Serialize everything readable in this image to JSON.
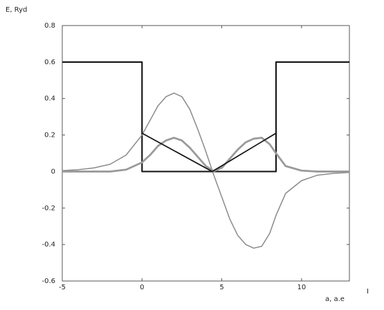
{
  "chart_data": {
    "type": "line",
    "ylabel": "E, Ryd",
    "xlabel": "a, a.e",
    "annotation": "I",
    "xlim": [
      -5,
      13
    ],
    "ylim": [
      -0.6,
      0.8
    ],
    "xticks": [
      -5,
      0,
      5,
      10
    ],
    "yticks": [
      -0.6,
      -0.4,
      -0.2,
      0,
      0.2,
      0.4,
      0.6,
      0.8
    ],
    "series": [
      {
        "color": "#1a1a1a",
        "width": 2.2,
        "x": [
          -5,
          0,
          0,
          8.4,
          8.4,
          13
        ],
        "values": [
          0.6,
          0.6,
          0,
          0,
          0.6,
          0.6
        ]
      },
      {
        "color": "#8a8a8a",
        "width": 1.5,
        "x": [
          -5,
          -4,
          -3,
          -2,
          -1,
          0,
          0.5,
          1,
          1.5,
          2,
          2.5,
          3,
          3.5,
          4,
          4.5,
          5,
          5.5,
          6,
          6.5,
          7,
          7.5,
          8,
          8.4,
          9,
          10,
          11,
          12,
          13
        ],
        "values": [
          0.005,
          0.01,
          0.02,
          0.04,
          0.09,
          0.2,
          0.28,
          0.36,
          0.41,
          0.43,
          0.41,
          0.34,
          0.23,
          0.11,
          -0.02,
          -0.14,
          -0.26,
          -0.35,
          -0.4,
          -0.42,
          -0.41,
          -0.34,
          -0.24,
          -0.12,
          -0.05,
          -0.02,
          -0.01,
          -0.005
        ]
      },
      {
        "color": "#9a9a9a",
        "width": 2.8,
        "x": [
          -5,
          -4,
          -3,
          -2,
          -1,
          0,
          0.5,
          1,
          1.5,
          2,
          2.5,
          3,
          3.5,
          4,
          4.5,
          5,
          5.5,
          6,
          6.5,
          7,
          7.5,
          8,
          8.4,
          9,
          10,
          11,
          12,
          13
        ],
        "values": [
          0,
          0,
          0,
          0,
          0.01,
          0.05,
          0.09,
          0.14,
          0.17,
          0.185,
          0.17,
          0.13,
          0.08,
          0.03,
          0.002,
          0.02,
          0.07,
          0.12,
          0.16,
          0.18,
          0.185,
          0.15,
          0.1,
          0.03,
          0.005,
          0,
          0,
          0
        ]
      },
      {
        "color": "#1a1a1a",
        "width": 1.8,
        "x": [
          0,
          4.4,
          8.4
        ],
        "values": [
          0.21,
          0,
          0.21
        ]
      }
    ]
  }
}
